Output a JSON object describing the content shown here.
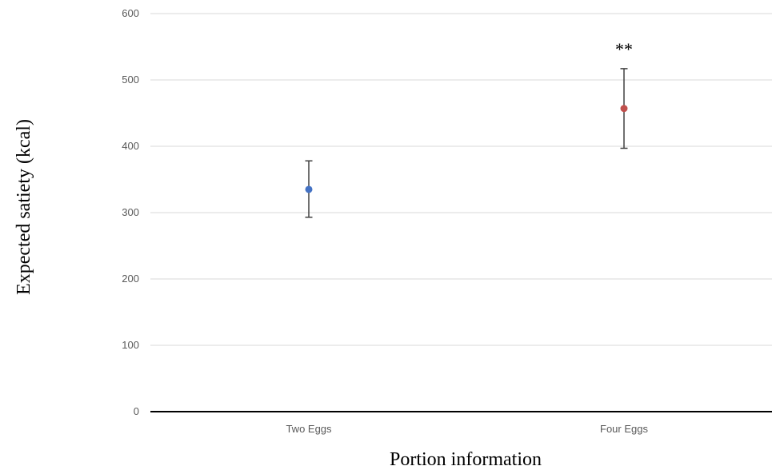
{
  "chart_data": {
    "type": "scatter",
    "title": "",
    "xlabel": "Portion information",
    "ylabel": "Expected satiety (kcal)",
    "categories": [
      "Two Eggs",
      "Four Eggs"
    ],
    "values": [
      335,
      457
    ],
    "error_low": [
      293,
      397
    ],
    "error_high": [
      378,
      517
    ],
    "point_colors": [
      "#4472c4",
      "#c0504d"
    ],
    "ylim": [
      0,
      600
    ],
    "yticks": [
      0,
      100,
      200,
      300,
      400,
      500,
      600
    ],
    "grid": true,
    "legend": "none",
    "annotations": [
      {
        "category": "Four Eggs",
        "text": "**"
      }
    ]
  }
}
